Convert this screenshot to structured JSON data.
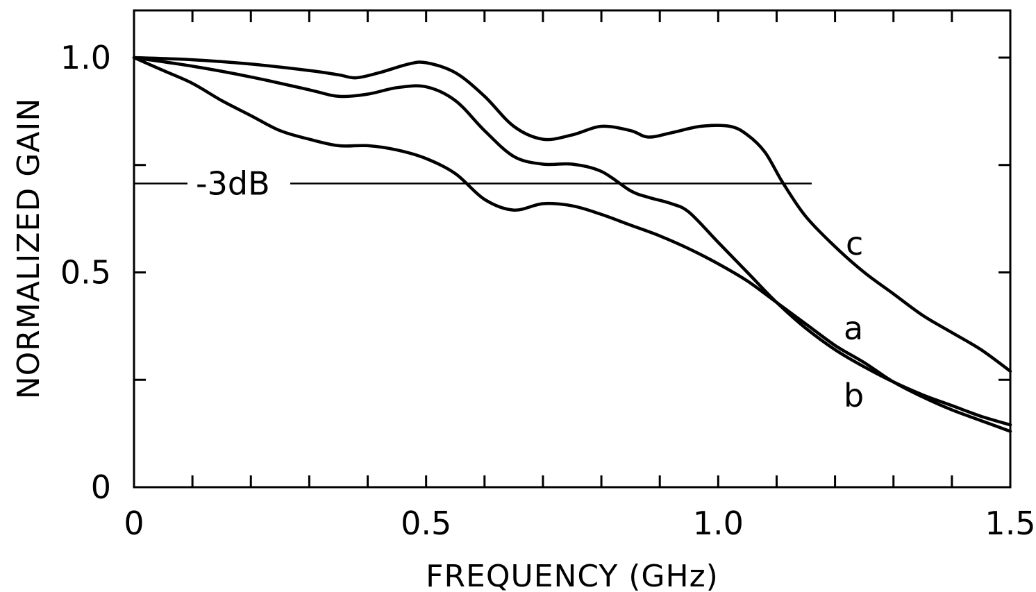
{
  "chart_data": {
    "type": "line",
    "title": "",
    "xlabel": "FREQUENCY (GHz)",
    "ylabel": "NORMALIZED GAIN",
    "xlim": [
      0,
      1.5
    ],
    "ylim": [
      0,
      1.0
    ],
    "x_ticks": [
      {
        "value": 0,
        "label": "0"
      },
      {
        "value": 0.5,
        "label": "0.5"
      },
      {
        "value": 1.0,
        "label": "1.0"
      },
      {
        "value": 1.5,
        "label": "1.5"
      }
    ],
    "y_ticks": [
      {
        "value": 0,
        "label": "0"
      },
      {
        "value": 0.5,
        "label": "0.5"
      },
      {
        "value": 1.0,
        "label": "1.0"
      }
    ],
    "x_minor_step": 0.1,
    "y_minor_step": 0.25,
    "grid": false,
    "reference_line": {
      "label": "-3dB",
      "y": 0.707,
      "x_start": 0,
      "x_end": 1.16
    },
    "series": [
      {
        "name": "c",
        "x": [
          0,
          0.1,
          0.2,
          0.3,
          0.35,
          0.38,
          0.42,
          0.47,
          0.5,
          0.55,
          0.6,
          0.65,
          0.7,
          0.75,
          0.8,
          0.85,
          0.88,
          0.92,
          0.97,
          1.02,
          1.05,
          1.08,
          1.11,
          1.15,
          1.2,
          1.25,
          1.3,
          1.35,
          1.4,
          1.45,
          1.5
        ],
        "y": [
          1.0,
          0.995,
          0.985,
          0.97,
          0.96,
          0.953,
          0.965,
          0.985,
          0.988,
          0.965,
          0.91,
          0.84,
          0.81,
          0.82,
          0.84,
          0.83,
          0.815,
          0.825,
          0.84,
          0.84,
          0.82,
          0.78,
          0.71,
          0.63,
          0.56,
          0.5,
          0.45,
          0.4,
          0.36,
          0.32,
          0.27
        ]
      },
      {
        "name": "a",
        "x": [
          0,
          0.1,
          0.2,
          0.3,
          0.35,
          0.4,
          0.45,
          0.5,
          0.55,
          0.6,
          0.65,
          0.7,
          0.75,
          0.8,
          0.85,
          0.88,
          0.92,
          0.95,
          1.0,
          1.05,
          1.1,
          1.15,
          1.2,
          1.25,
          1.3,
          1.35,
          1.4,
          1.45,
          1.5
        ],
        "y": [
          1.0,
          0.98,
          0.955,
          0.925,
          0.91,
          0.915,
          0.93,
          0.932,
          0.9,
          0.83,
          0.77,
          0.752,
          0.752,
          0.735,
          0.69,
          0.675,
          0.66,
          0.64,
          0.57,
          0.5,
          0.43,
          0.37,
          0.32,
          0.28,
          0.245,
          0.215,
          0.19,
          0.165,
          0.145
        ]
      },
      {
        "name": "b",
        "x": [
          0,
          0.05,
          0.1,
          0.15,
          0.2,
          0.25,
          0.3,
          0.35,
          0.4,
          0.45,
          0.5,
          0.55,
          0.6,
          0.65,
          0.7,
          0.75,
          0.8,
          0.85,
          0.9,
          0.95,
          1.0,
          1.05,
          1.1,
          1.15,
          1.2,
          1.25,
          1.3,
          1.35,
          1.4,
          1.45,
          1.5
        ],
        "y": [
          1.0,
          0.97,
          0.94,
          0.9,
          0.865,
          0.83,
          0.81,
          0.795,
          0.795,
          0.785,
          0.765,
          0.73,
          0.67,
          0.645,
          0.66,
          0.655,
          0.635,
          0.61,
          0.585,
          0.555,
          0.52,
          0.48,
          0.43,
          0.38,
          0.33,
          0.29,
          0.245,
          0.21,
          0.18,
          0.155,
          0.13
        ]
      }
    ]
  }
}
